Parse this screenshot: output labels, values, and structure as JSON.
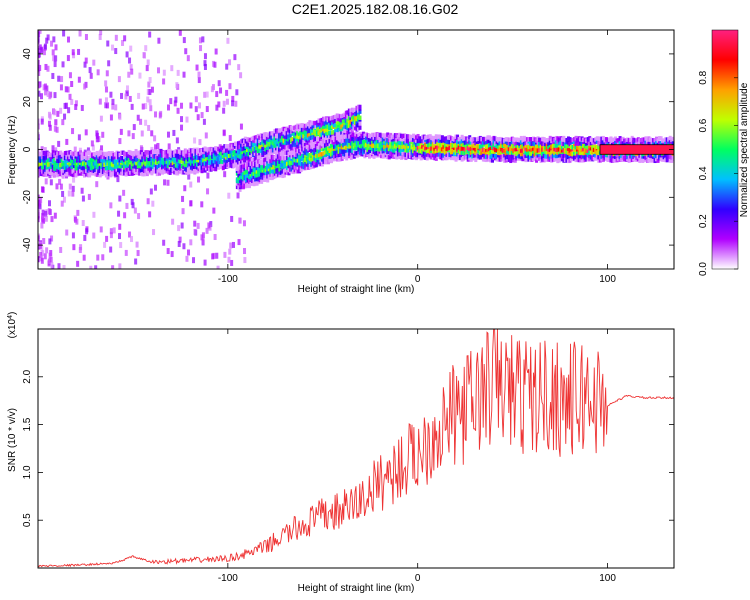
{
  "title": "C2E1.2025.182.08.16.G02",
  "colors": {
    "snr_line": "#ee3333",
    "frame": "#000000"
  },
  "chart_data": [
    {
      "type": "heatmap",
      "xlabel": "Height of straight line (km)",
      "ylabel": "Frequency (Hz)",
      "xlim": [
        -200,
        135
      ],
      "ylim": [
        -50,
        50
      ],
      "xticks": [
        -100,
        0,
        100
      ],
      "yticks": [
        -40,
        -20,
        0,
        20,
        40
      ],
      "colorbar": {
        "label": "Normalized spectral amplitude",
        "range": [
          0,
          1
        ],
        "ticks": [
          0.0,
          0.2,
          0.4,
          0.6,
          0.8
        ],
        "tick_labels": [
          "0.0",
          "0.2",
          "0.4",
          "0.6",
          "0.8"
        ],
        "colormap": [
          "#ffffff",
          "#b000ff",
          "#3000ff",
          "#00c0ff",
          "#00ff60",
          "#c0ff00",
          "#ffa000",
          "#ff0000",
          "#ff2080"
        ]
      },
      "ridges": [
        {
          "name": "",
          "points": [
            [
              -200,
              -6
            ],
            [
              -160,
              -6
            ],
            [
              -120,
              -5
            ],
            [
              -100,
              -3
            ],
            [
              -80,
              2
            ],
            [
              -60,
              6
            ],
            [
              -40,
              10
            ],
            [
              -30,
              14
            ]
          ]
        },
        {
          "name": "",
          "points": [
            [
              -95,
              -12
            ],
            [
              -70,
              -6
            ],
            [
              -55,
              -3
            ],
            [
              -45,
              0
            ],
            [
              -30,
              2
            ],
            [
              0,
              1
            ],
            [
              50,
              0
            ],
            [
              100,
              0
            ],
            [
              135,
              0
            ]
          ]
        }
      ]
    },
    {
      "type": "line",
      "xlabel": "Height of straight line (km)",
      "ylabel": "SNR (10 * v/v)",
      "y_multiplier": "(x10^4)",
      "xlim": [
        -200,
        135
      ],
      "ylim": [
        0,
        2.5
      ],
      "xticks": [
        -100,
        0,
        100
      ],
      "yticks": [
        0.5,
        1.0,
        1.5,
        2.0
      ],
      "ytick_labels": [
        "0.5",
        "1.0",
        "1.5",
        "2.0"
      ],
      "series": [
        {
          "name": "",
          "x": [
            -200,
            -180,
            -160,
            -150,
            -140,
            -120,
            -100,
            -90,
            -80,
            -70,
            -60,
            -50,
            -40,
            -30,
            -20,
            -10,
            0,
            10,
            20,
            30,
            40,
            50,
            60,
            70,
            80,
            90,
            100,
            110,
            120,
            135
          ],
          "y": [
            0.02,
            0.03,
            0.05,
            0.12,
            0.06,
            0.08,
            0.1,
            0.15,
            0.22,
            0.35,
            0.45,
            0.55,
            0.6,
            0.7,
            0.9,
            1.05,
            1.2,
            1.45,
            1.6,
            1.75,
            1.95,
            1.85,
            1.78,
            1.82,
            1.75,
            1.8,
            1.7,
            1.8,
            1.78,
            1.78
          ]
        }
      ]
    }
  ]
}
